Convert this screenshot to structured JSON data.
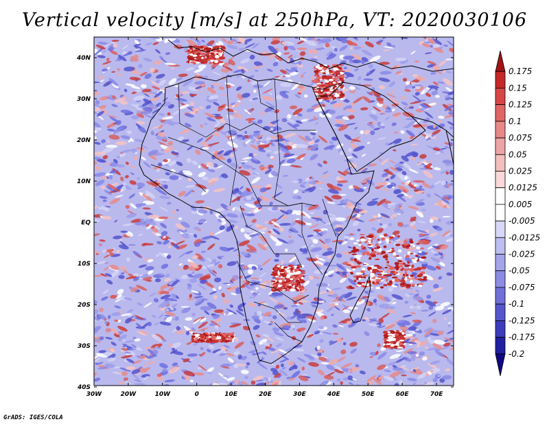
{
  "title": "Vertical velocity [m/s] at 250hPa, VT: 2020030106",
  "credit": "GrADS: IGES/COLA",
  "map": {
    "lon_labels": [
      "30W",
      "20W",
      "10W",
      "0",
      "10E",
      "20E",
      "30E",
      "40E",
      "50E",
      "60E",
      "70E"
    ],
    "lat_labels": [
      "40N",
      "30N",
      "20N",
      "10N",
      "EQ",
      "10S",
      "20S",
      "30S",
      "40S"
    ],
    "lon_range": [
      -30,
      75
    ],
    "lat_range": [
      -40,
      45
    ]
  },
  "colorbar": {
    "labels": [
      "0.175",
      "0.15",
      "0.125",
      "0.1",
      "0.075",
      "0.05",
      "0.025",
      "0.0125",
      "0.005",
      "-0.005",
      "-0.0125",
      "-0.025",
      "-0.05",
      "-0.075",
      "-0.1",
      "-0.125",
      "-0.175",
      "-0.2"
    ],
    "colors": [
      "#a01414",
      "#c42828",
      "#d64646",
      "#e06666",
      "#e88888",
      "#eda4a4",
      "#f2bebe",
      "#f8d8d8",
      "#ffffff",
      "#ffffff",
      "#d8d8f6",
      "#bebef0",
      "#a4a4ea",
      "#8c8ce4",
      "#7070d8",
      "#5656cc",
      "#3c3cbc",
      "#2020a0",
      "#100880"
    ]
  },
  "colors": {
    "positive": "#d23c3c",
    "negative": "#4646d2",
    "background_field": "#b4b4ec"
  }
}
